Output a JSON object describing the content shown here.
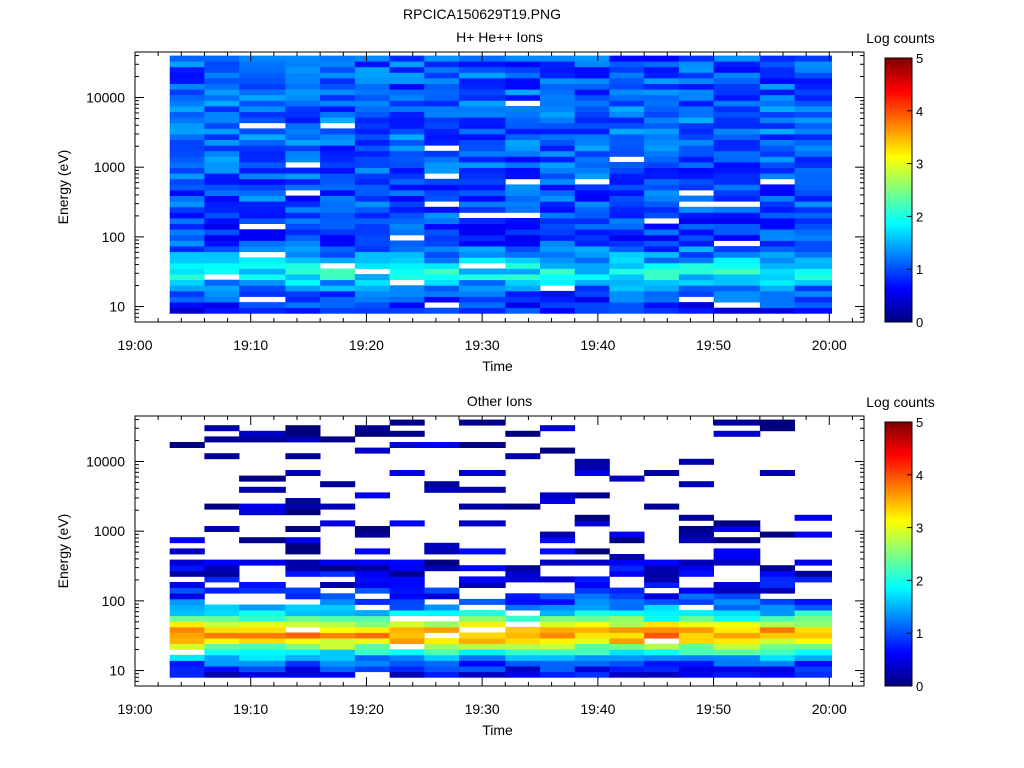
{
  "figure_title": "RPCICA150629T19.PNG",
  "colorscale": [
    "#00007f",
    "#0000ff",
    "#007fff",
    "#00ffff",
    "#7fff7f",
    "#ffff00",
    "#ff7f00",
    "#ff0000",
    "#7f0000"
  ],
  "chart_data": [
    {
      "type": "heatmap",
      "title": "H+ He++ Ions",
      "xlabel": "Time",
      "ylabel": "Energy (eV)",
      "y_scale": "log",
      "x_range": [
        "19:00",
        "20:03"
      ],
      "ylim": [
        6,
        45000
      ],
      "x_ticks": [
        "19:00",
        "19:10",
        "19:20",
        "19:30",
        "19:40",
        "19:50",
        "20:00"
      ],
      "y_ticks": [
        10,
        100,
        1000,
        10000
      ],
      "y_tick_labels": [
        "10",
        "100",
        "1000",
        "10000"
      ],
      "colorbar": {
        "label": "Log counts",
        "min": 0,
        "max": 5,
        "ticks": [
          "0",
          "1",
          "2",
          "3",
          "4",
          "5"
        ]
      },
      "sweep_start_times": [
        "19:03",
        "19:06",
        "19:09",
        "19:13",
        "19:16",
        "19:19",
        "19:22",
        "19:25",
        "19:28",
        "19:32",
        "19:35",
        "19:38",
        "19:41",
        "19:44",
        "19:47",
        "19:50",
        "19:54",
        "19:57"
      ],
      "energy_profile": [
        [
          8,
          0.7
        ],
        [
          12,
          0.9
        ],
        [
          17,
          1.1
        ],
        [
          22,
          1.5
        ],
        [
          28,
          1.9
        ],
        [
          35,
          1.8
        ],
        [
          45,
          1.5
        ],
        [
          60,
          1.2
        ],
        [
          80,
          1.0
        ],
        [
          120,
          0.9
        ],
        [
          300,
          1.0
        ],
        [
          1000,
          1.05
        ],
        [
          5000,
          1.1
        ],
        [
          40000,
          1.0
        ]
      ],
      "summary": "Broad ion population across 8 eV to 40 keV at about 0.7 to 1.2 log counts, with a peak of about 2 to 2.8 log counts near 25 to 45 eV"
    },
    {
      "type": "heatmap",
      "title": "Other Ions",
      "xlabel": "Time",
      "ylabel": "Energy (eV)",
      "y_scale": "log",
      "x_range": [
        "19:00",
        "20:03"
      ],
      "ylim": [
        6,
        45000
      ],
      "x_ticks": [
        "19:00",
        "19:10",
        "19:20",
        "19:30",
        "19:40",
        "19:50",
        "20:00"
      ],
      "y_ticks": [
        10,
        100,
        1000,
        10000
      ],
      "y_tick_labels": [
        "10",
        "100",
        "1000",
        "10000"
      ],
      "colorbar": {
        "label": "Log counts",
        "min": 0,
        "max": 5,
        "ticks": [
          "0",
          "1",
          "2",
          "3",
          "4",
          "5"
        ]
      },
      "sweep_start_times": [
        "19:03",
        "19:06",
        "19:09",
        "19:13",
        "19:16",
        "19:19",
        "19:22",
        "19:25",
        "19:28",
        "19:32",
        "19:35",
        "19:38",
        "19:41",
        "19:44",
        "19:47",
        "19:50",
        "19:54",
        "19:57"
      ],
      "energy_profile": [
        [
          8,
          0.4
        ],
        [
          12,
          0.9
        ],
        [
          17,
          1.6
        ],
        [
          22,
          2.6
        ],
        [
          28,
          3.4
        ],
        [
          35,
          3.7
        ],
        [
          45,
          3.0
        ],
        [
          60,
          2.0
        ],
        [
          90,
          1.1
        ],
        [
          150,
          0.6
        ],
        [
          400,
          0.35
        ],
        [
          2000,
          0.2
        ],
        [
          40000,
          0.15
        ]
      ],
      "summary": "Strong peak of about 3 to 4.5 log counts near 25 to 50 eV, falling to sparse low counts above a few hundred eV"
    }
  ]
}
